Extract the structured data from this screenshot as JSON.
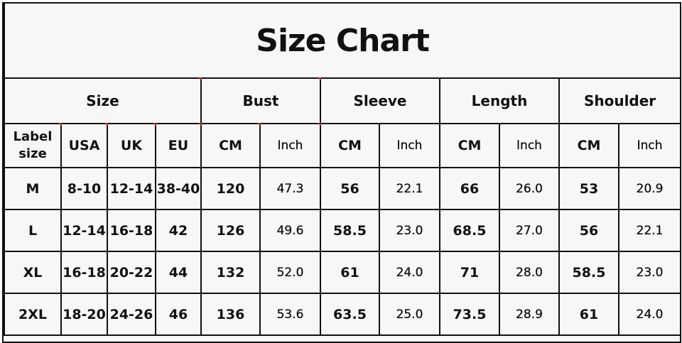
{
  "title": "Size Chart",
  "group_headers": [
    "Size",
    "Bust",
    "Sleeve",
    "Length",
    "Shoulder"
  ],
  "sub_headers": [
    "Label size",
    "USA",
    "UK",
    "EU",
    "CM",
    "Inch",
    "CM",
    "Inch",
    "CM",
    "Inch",
    "CM",
    "Inch"
  ],
  "rows": [
    [
      "M",
      "8-10",
      "12-14",
      "38-40",
      "120",
      "47.3",
      "56",
      "22.1",
      "66",
      "26.0",
      "53",
      "20.9"
    ],
    [
      "L",
      "12-14",
      "16-18",
      "42",
      "126",
      "49.6",
      "58.5",
      "23.0",
      "68.5",
      "27.0",
      "56",
      "22.1"
    ],
    [
      "XL",
      "16-18",
      "20-22",
      "44",
      "132",
      "52.0",
      "61",
      "24.0",
      "71",
      "28.0",
      "58.5",
      "23.0"
    ],
    [
      "2XL",
      "18-20",
      "24-26",
      "46",
      "136",
      "53.6",
      "63.5",
      "25.0",
      "73.5",
      "28.9",
      "61",
      "24.0"
    ]
  ],
  "colors": {
    "border": "#111111",
    "background": "#f7f7f7",
    "corner_mark": "#c0202a"
  }
}
